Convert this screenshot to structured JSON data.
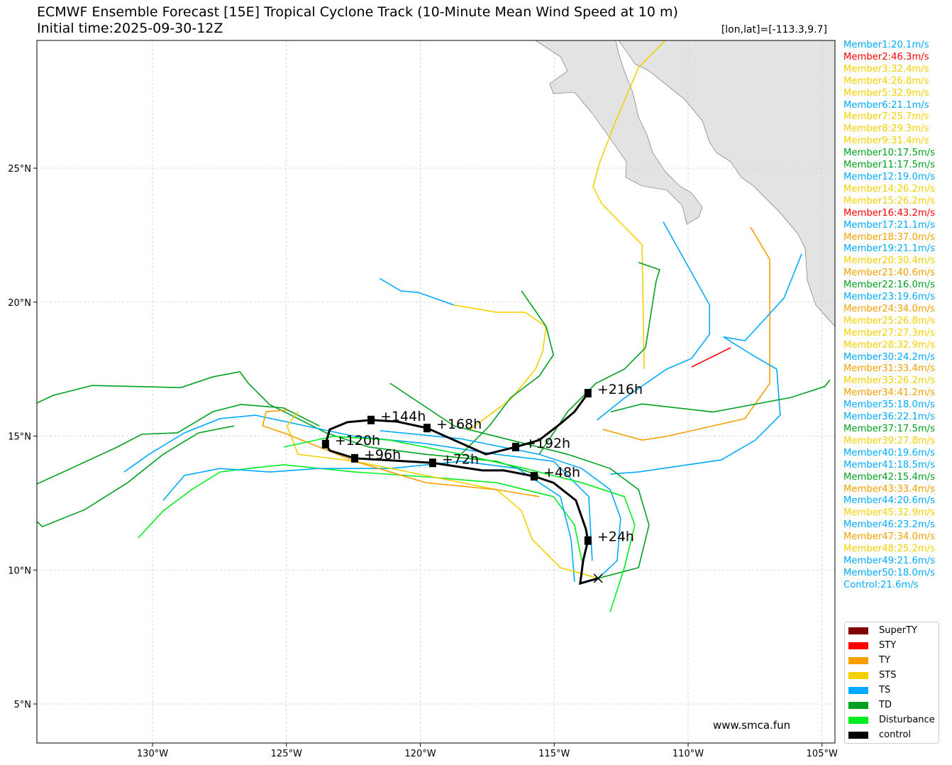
{
  "header": {
    "title": "ECMWF Ensemble Forecast [15E] Tropical Cyclone Track (10-Minute Mean Wind Speed at 10 m)",
    "subtitle": "Initial time:2025-09-30-12Z",
    "coord": "[lon,lat]=[-113.3,9.7]"
  },
  "watermark": "www.smca.fun",
  "colors": {
    "SuperTY": "#800000",
    "STY": "#ff0000",
    "TY": "#f5a000",
    "STS": "#f5d000",
    "TS": "#00aaff",
    "TD": "#00a020",
    "Disturbance": "#00ee20",
    "control": "#000000",
    "land": "#e3e3e3",
    "grid": "#cccccc"
  },
  "members": [
    {
      "label": "Member1:20.1m/s",
      "cat": "TS"
    },
    {
      "label": "Member2:46.3m/s",
      "cat": "STY"
    },
    {
      "label": "Member3:32.4m/s",
      "cat": "STS"
    },
    {
      "label": "Member4:26.8m/s",
      "cat": "STS"
    },
    {
      "label": "Member5:32.9m/s",
      "cat": "STS"
    },
    {
      "label": "Member6:21.1m/s",
      "cat": "TS"
    },
    {
      "label": "Member7:25.7m/s",
      "cat": "STS"
    },
    {
      "label": "Member8:29.3m/s",
      "cat": "STS"
    },
    {
      "label": "Member9:31.4m/s",
      "cat": "STS"
    },
    {
      "label": "Member10:17.5m/s",
      "cat": "TD"
    },
    {
      "label": "Member11:17.5m/s",
      "cat": "TD"
    },
    {
      "label": "Member12:19.0m/s",
      "cat": "TS"
    },
    {
      "label": "Member14:26.2m/s",
      "cat": "STS"
    },
    {
      "label": "Member15:26.2m/s",
      "cat": "STS"
    },
    {
      "label": "Member16:43.2m/s",
      "cat": "STY"
    },
    {
      "label": "Member17:21.1m/s",
      "cat": "TS"
    },
    {
      "label": "Member18:37.0m/s",
      "cat": "TY"
    },
    {
      "label": "Member19:21.1m/s",
      "cat": "TS"
    },
    {
      "label": "Member20:30.4m/s",
      "cat": "STS"
    },
    {
      "label": "Member21:40.6m/s",
      "cat": "TY"
    },
    {
      "label": "Member22:16.0m/s",
      "cat": "TD"
    },
    {
      "label": "Member23:19.6m/s",
      "cat": "TS"
    },
    {
      "label": "Member24:34.0m/s",
      "cat": "TY"
    },
    {
      "label": "Member25:26.8m/s",
      "cat": "STS"
    },
    {
      "label": "Member27:27.3m/s",
      "cat": "STS"
    },
    {
      "label": "Member28:32.9m/s",
      "cat": "STS"
    },
    {
      "label": "Member30:24.2m/s",
      "cat": "TS"
    },
    {
      "label": "Member31:33.4m/s",
      "cat": "TY"
    },
    {
      "label": "Member33:26.2m/s",
      "cat": "STS"
    },
    {
      "label": "Member34:41.2m/s",
      "cat": "TY"
    },
    {
      "label": "Member35:18.0m/s",
      "cat": "TS"
    },
    {
      "label": "Member36:22.1m/s",
      "cat": "TS"
    },
    {
      "label": "Member37:17.5m/s",
      "cat": "TD"
    },
    {
      "label": "Member39:27.8m/s",
      "cat": "STS"
    },
    {
      "label": "Member40:19.6m/s",
      "cat": "TS"
    },
    {
      "label": "Member41:18.5m/s",
      "cat": "TS"
    },
    {
      "label": "Member42:15.4m/s",
      "cat": "TD"
    },
    {
      "label": "Member43:33.4m/s",
      "cat": "TY"
    },
    {
      "label": "Member44:20.6m/s",
      "cat": "TS"
    },
    {
      "label": "Member45:32.9m/s",
      "cat": "STS"
    },
    {
      "label": "Member46:23.2m/s",
      "cat": "TS"
    },
    {
      "label": "Member47:34.0m/s",
      "cat": "TY"
    },
    {
      "label": "Member48:25.2m/s",
      "cat": "STS"
    },
    {
      "label": "Member49:21.6m/s",
      "cat": "TS"
    },
    {
      "label": "Member50:18.0m/s",
      "cat": "TS"
    },
    {
      "label": "Control:21.6m/s",
      "cat": "TS"
    }
  ],
  "legend": [
    "SuperTY",
    "STY",
    "TY",
    "STS",
    "TS",
    "TD",
    "Disturbance",
    "control"
  ],
  "chart_data": {
    "type": "line",
    "title": "ECMWF Ensemble Forecast [15E] Tropical Cyclone Track (10-Minute Mean Wind Speed at 10 m)",
    "xlim": [
      -134.3,
      -104.5
    ],
    "ylim": [
      3.5,
      29.8
    ],
    "grid": true,
    "legend_position": "bottom-right",
    "x_ticks": [
      {
        "v": -130,
        "label": "130°W"
      },
      {
        "v": -125,
        "label": "125°W"
      },
      {
        "v": -120,
        "label": "120°W"
      },
      {
        "v": -115,
        "label": "115°W"
      },
      {
        "v": -110,
        "label": "110°W"
      },
      {
        "v": -105,
        "label": "105°W"
      }
    ],
    "y_ticks": [
      {
        "v": 5,
        "label": "5°N"
      },
      {
        "v": 10,
        "label": "10°N"
      },
      {
        "v": 15,
        "label": "15°N"
      },
      {
        "v": 20,
        "label": "20°N"
      },
      {
        "v": 25,
        "label": "25°N"
      }
    ],
    "control": {
      "track": [
        [
          -113.36,
          9.69
        ],
        [
          -114.03,
          9.5
        ],
        [
          -113.92,
          10.35
        ],
        [
          -113.74,
          11.1
        ],
        [
          -113.82,
          11.54
        ],
        [
          -114.19,
          12.6
        ],
        [
          -115.03,
          13.26
        ],
        [
          -115.75,
          13.5
        ],
        [
          -116.89,
          13.72
        ],
        [
          -117.68,
          13.72
        ],
        [
          -119.54,
          14.0
        ],
        [
          -122.45,
          14.17
        ],
        [
          -123.38,
          14.46
        ],
        [
          -123.54,
          14.7
        ],
        [
          -123.38,
          15.25
        ],
        [
          -122.72,
          15.52
        ],
        [
          -121.84,
          15.6
        ],
        [
          -120.86,
          15.54
        ],
        [
          -119.75,
          15.3
        ],
        [
          -118.74,
          14.85
        ],
        [
          -117.55,
          14.32
        ],
        [
          -116.44,
          14.59
        ],
        [
          -115.56,
          14.85
        ],
        [
          -114.77,
          15.46
        ],
        [
          -114.24,
          15.91
        ],
        [
          -113.74,
          16.6
        ]
      ],
      "marks": [
        {
          "label": "+24h",
          "lon": -113.74,
          "lat": 11.1
        },
        {
          "label": "+48h",
          "lon": -115.75,
          "lat": 13.5
        },
        {
          "label": "+72h",
          "lon": -119.54,
          "lat": 14.0
        },
        {
          "label": "+96h",
          "lon": -122.45,
          "lat": 14.17
        },
        {
          "label": "+120h",
          "lon": -123.54,
          "lat": 14.7
        },
        {
          "label": "+144h",
          "lon": -121.84,
          "lat": 15.6
        },
        {
          "label": "+168h",
          "lon": -119.75,
          "lat": 15.3
        },
        {
          "label": "+192h",
          "lon": -116.44,
          "lat": 14.59
        },
        {
          "label": "+216h",
          "lon": -113.74,
          "lat": 16.6
        }
      ]
    },
    "member_tracks": [
      {
        "cat": "STS",
        "pts": [
          [
            -111.64,
            17.5
          ],
          [
            -111.72,
            22.14
          ],
          [
            -113.23,
            23.68
          ],
          [
            -113.55,
            24.31
          ],
          [
            -113.31,
            25.19
          ],
          [
            -112.7,
            26.77
          ],
          [
            -111.85,
            28.76
          ],
          [
            -110.85,
            29.77
          ]
        ]
      },
      {
        "cat": "TS",
        "pts": [
          [
            -110.93,
            23.0
          ],
          [
            -109.2,
            19.9
          ],
          [
            -109.2,
            18.8
          ],
          [
            -109.87,
            17.9
          ],
          [
            -110.8,
            17.5
          ],
          [
            -112.4,
            16.4
          ],
          [
            -113.4,
            15.6
          ]
        ]
      },
      {
        "cat": "TY",
        "pts": [
          [
            -107.67,
            22.8
          ],
          [
            -106.95,
            21.6
          ],
          [
            -106.95,
            16.97
          ],
          [
            -107.88,
            15.65
          ],
          [
            -110.8,
            14.99
          ],
          [
            -111.72,
            14.85
          ],
          [
            -113.18,
            15.25
          ]
        ]
      },
      {
        "cat": "TS",
        "pts": [
          [
            -105.76,
            21.8
          ],
          [
            -106.42,
            20.15
          ],
          [
            -107.88,
            18.56
          ],
          [
            -108.68,
            18.7
          ],
          [
            -107.61,
            18.03
          ],
          [
            -106.69,
            17.5
          ],
          [
            -106.56,
            15.78
          ],
          [
            -107.49,
            14.85
          ],
          [
            -108.76,
            14.11
          ],
          [
            -111.85,
            13.66
          ],
          [
            -112.9,
            13.58
          ]
        ]
      },
      {
        "cat": "TD",
        "pts": [
          [
            -104.7,
            17.1
          ],
          [
            -104.9,
            16.85
          ],
          [
            -106.16,
            16.44
          ],
          [
            -109.07,
            15.9
          ],
          [
            -111.72,
            16.2
          ],
          [
            -112.9,
            15.9
          ]
        ]
      },
      {
        "cat": "STY",
        "pts": [
          [
            -109.87,
            17.58
          ],
          [
            -108.41,
            18.3
          ]
        ]
      },
      {
        "cat": "TD",
        "pts": [
          [
            -134.32,
            16.23
          ],
          [
            -133.71,
            16.52
          ],
          [
            -132.25,
            16.89
          ],
          [
            -128.94,
            16.81
          ],
          [
            -127.75,
            17.21
          ],
          [
            -126.74,
            17.4
          ],
          [
            -126.42,
            16.97
          ],
          [
            -125.63,
            16.18
          ],
          [
            -124.57,
            15.65
          ],
          [
            -123.51,
            15.12
          ],
          [
            -121.92,
            14.59
          ],
          [
            -119.8,
            14.32
          ],
          [
            -117.15,
            14.06
          ],
          [
            -115.56,
            13.53
          ]
        ]
      },
      {
        "cat": "TD",
        "pts": [
          [
            -134.32,
            13.21
          ],
          [
            -133.05,
            13.79
          ],
          [
            -131.32,
            14.59
          ],
          [
            -130.4,
            15.07
          ],
          [
            -129.07,
            15.12
          ],
          [
            -127.75,
            15.91
          ],
          [
            -126.69,
            16.18
          ],
          [
            -125.1,
            16.05
          ],
          [
            -123.77,
            15.38
          ]
        ]
      },
      {
        "cat": "TD",
        "pts": [
          [
            -134.32,
            11.81
          ],
          [
            -134.11,
            11.62
          ],
          [
            -132.52,
            12.26
          ],
          [
            -130.93,
            13.26
          ],
          [
            -129.6,
            14.32
          ],
          [
            -128.28,
            15.12
          ],
          [
            -126.95,
            15.38
          ]
        ]
      },
      {
        "cat": "Disturbance",
        "pts": [
          [
            -130.53,
            11.2
          ],
          [
            -129.6,
            12.21
          ],
          [
            -128.54,
            13.0
          ],
          [
            -127.48,
            13.66
          ],
          [
            -126.42,
            13.79
          ],
          [
            -125.1,
            13.93
          ],
          [
            -122.45,
            13.66
          ],
          [
            -119.8,
            13.48
          ],
          [
            -117.15,
            13.26
          ],
          [
            -115.03,
            12.74
          ],
          [
            -114.24,
            11.68
          ],
          [
            -113.97,
            10.35
          ]
        ]
      },
      {
        "cat": "TS",
        "pts": [
          [
            -129.6,
            12.6
          ],
          [
            -128.81,
            13.53
          ],
          [
            -127.48,
            13.79
          ],
          [
            -125.63,
            13.66
          ],
          [
            -123.77,
            13.79
          ],
          [
            -121.13,
            13.79
          ],
          [
            -118.48,
            14.06
          ],
          [
            -116.36,
            13.79
          ],
          [
            -114.77,
            12.74
          ],
          [
            -114.37,
            11.15
          ],
          [
            -114.24,
            9.56
          ]
        ]
      },
      {
        "cat": "TS",
        "pts": [
          [
            -131.06,
            13.66
          ],
          [
            -130.13,
            14.32
          ],
          [
            -128.81,
            15.12
          ],
          [
            -127.48,
            15.65
          ],
          [
            -126.16,
            15.78
          ],
          [
            -124.3,
            15.38
          ],
          [
            -122.45,
            14.99
          ],
          [
            -119.8,
            14.72
          ],
          [
            -117.15,
            14.32
          ],
          [
            -115.03,
            14.06
          ],
          [
            -113.71,
            12.74
          ],
          [
            -113.58,
            10.35
          ]
        ]
      },
      {
        "cat": "TS",
        "pts": [
          [
            -121.52,
            20.89
          ],
          [
            -120.73,
            20.42
          ],
          [
            -120.07,
            20.36
          ],
          [
            -118.74,
            19.89
          ]
        ]
      },
      {
        "cat": "STS",
        "pts": [
          [
            -118.74,
            19.89
          ],
          [
            -117.15,
            19.62
          ],
          [
            -116.09,
            19.62
          ],
          [
            -115.3,
            19.09
          ],
          [
            -115.43,
            18.17
          ],
          [
            -115.7,
            17.5
          ],
          [
            -116.6,
            16.4
          ],
          [
            -118.2,
            15.2
          ]
        ]
      },
      {
        "cat": "TD",
        "pts": [
          [
            -116.22,
            20.42
          ],
          [
            -115.3,
            19.09
          ],
          [
            -115.03,
            18.03
          ],
          [
            -115.56,
            17.24
          ],
          [
            -116.62,
            16.44
          ],
          [
            -117.42,
            15.38
          ],
          [
            -118.48,
            14.32
          ]
        ]
      },
      {
        "cat": "TD",
        "pts": [
          [
            -111.85,
            21.48
          ],
          [
            -111.06,
            21.21
          ],
          [
            -111.19,
            20.81
          ],
          [
            -111.59,
            18.3
          ],
          [
            -112.38,
            17.5
          ],
          [
            -113.44,
            16.97
          ],
          [
            -114.5,
            15.91
          ],
          [
            -115.56,
            14.32
          ]
        ]
      },
      {
        "cat": "TD",
        "pts": [
          [
            -113.36,
            9.69
          ],
          [
            -111.85,
            10.09
          ],
          [
            -111.46,
            11.68
          ],
          [
            -111.85,
            13.0
          ],
          [
            -112.91,
            13.79
          ],
          [
            -114.5,
            14.32
          ],
          [
            -116.62,
            14.85
          ],
          [
            -118.74,
            15.38
          ],
          [
            -120.33,
            16.44
          ],
          [
            -121.13,
            16.97
          ]
        ]
      },
      {
        "cat": "TS",
        "pts": [
          [
            -113.36,
            9.69
          ],
          [
            -112.65,
            10.35
          ],
          [
            -112.52,
            11.94
          ],
          [
            -112.91,
            13.0
          ],
          [
            -113.97,
            13.79
          ],
          [
            -115.56,
            14.32
          ],
          [
            -118.5,
            14.9
          ],
          [
            -121.5,
            15.2
          ]
        ]
      },
      {
        "cat": "STS",
        "pts": [
          [
            -113.36,
            9.69
          ],
          [
            -114.77,
            10.09
          ],
          [
            -115.83,
            11.15
          ],
          [
            -116.22,
            12.21
          ],
          [
            -117.15,
            13.0
          ],
          [
            -119.8,
            13.53
          ],
          [
            -122.45,
            14.06
          ],
          [
            -124.57,
            14.32
          ],
          [
            -124.97,
            15.38
          ],
          [
            -124.57,
            15.91
          ]
        ]
      },
      {
        "cat": "TY",
        "pts": [
          [
            -115.56,
            12.74
          ],
          [
            -117.15,
            13.0
          ],
          [
            -119.8,
            13.26
          ],
          [
            -122.45,
            14.06
          ],
          [
            -125.1,
            15.12
          ],
          [
            -125.89,
            15.38
          ],
          [
            -125.76,
            15.91
          ],
          [
            -124.97,
            15.97
          ]
        ]
      },
      {
        "cat": "Disturbance",
        "pts": [
          [
            -112.91,
            8.44
          ],
          [
            -112.38,
            10.09
          ],
          [
            -111.99,
            11.68
          ],
          [
            -112.38,
            12.74
          ],
          [
            -113.97,
            13.26
          ],
          [
            -116.09,
            13.79
          ],
          [
            -118.48,
            14.32
          ],
          [
            -121.13,
            14.85
          ],
          [
            -123.25,
            14.99
          ],
          [
            -125.1,
            14.59
          ]
        ]
      }
    ]
  }
}
